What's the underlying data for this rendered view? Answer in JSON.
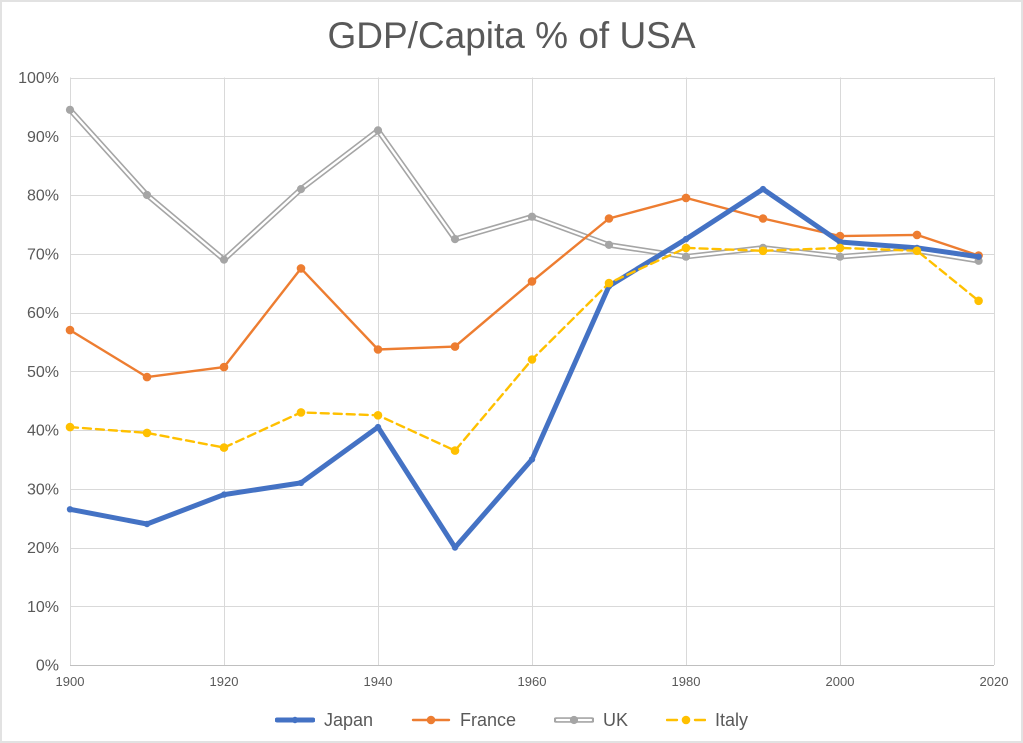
{
  "title": "GDP/Capita % of USA",
  "chart_data": {
    "type": "line",
    "title": "GDP/Capita % of USA",
    "xlabel": "",
    "ylabel": "",
    "x": [
      1900,
      1910,
      1920,
      1930,
      1940,
      1950,
      1960,
      1970,
      1980,
      1990,
      2000,
      2010,
      2018
    ],
    "xticks": [
      1900,
      1920,
      1940,
      1960,
      1980,
      2000,
      2020
    ],
    "xlim": [
      1900,
      2020
    ],
    "ylim": [
      0,
      100
    ],
    "ytick_step": 10,
    "ytick_suffix": "%",
    "grid": true,
    "legend_position": "bottom",
    "series": [
      {
        "name": "Japan",
        "color": "#4472C4",
        "line_style": "solid-thick",
        "marker": "circle",
        "values": [
          26.5,
          24,
          29,
          31,
          40.5,
          20,
          35,
          64.5,
          72.5,
          81,
          72,
          71,
          69.5
        ]
      },
      {
        "name": "France",
        "color": "#ED7D31",
        "line_style": "solid",
        "marker": "circle",
        "values": [
          57,
          49,
          50.7,
          67.5,
          53.7,
          54.2,
          65.3,
          76,
          79.5,
          76,
          73,
          73.2,
          69.7
        ]
      },
      {
        "name": "UK",
        "color": "#A5A5A5",
        "line_style": "double",
        "marker": "circle",
        "values": [
          94.5,
          80,
          69,
          81,
          91,
          72.5,
          76.3,
          71.5,
          69.5,
          71,
          69.5,
          70.5,
          68.8
        ]
      },
      {
        "name": "Italy",
        "color": "#FFC000",
        "line_style": "dashed",
        "marker": "circle",
        "values": [
          40.5,
          39.5,
          37,
          43,
          42.5,
          36.5,
          52,
          65,
          71,
          70.5,
          71,
          70.5,
          62
        ]
      }
    ],
    "draw_order": [
      2,
      1,
      0,
      3
    ]
  },
  "colors": {
    "title_text": "#595959",
    "axis_text": "#595959",
    "gridline": "#D9D9D9",
    "axis_line": "#BFBFBF",
    "background": "#FFFFFF",
    "border": "#E2E2E2"
  }
}
